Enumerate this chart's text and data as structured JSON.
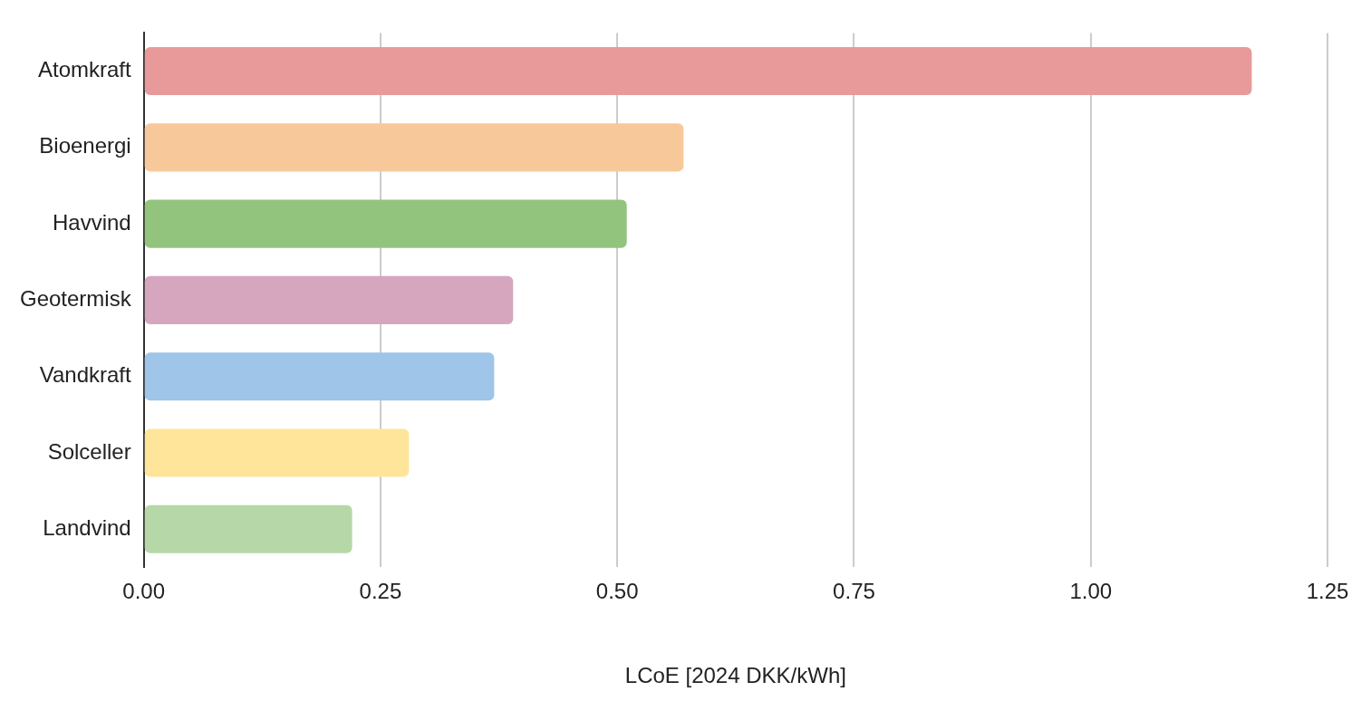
{
  "chart_data": {
    "type": "bar",
    "orientation": "horizontal",
    "xlabel": "LCoE [2024 DKK/kWh]",
    "categories": [
      "Atomkraft",
      "Bioenergi",
      "Havvind",
      "Geotermisk",
      "Vandkraft",
      "Solceller",
      "Landvind"
    ],
    "values": [
      1.17,
      0.57,
      0.51,
      0.39,
      0.37,
      0.28,
      0.22
    ],
    "colors": [
      "#e89a9a",
      "#f7c99a",
      "#93c47d",
      "#d5a6bd",
      "#9fc5e8",
      "#ffe599",
      "#b6d7a8"
    ],
    "xlim": [
      0,
      1.25
    ],
    "xticks": [
      {
        "value": 0,
        "label": "0.00"
      },
      {
        "value": 0.25,
        "label": "0.25"
      },
      {
        "value": 0.5,
        "label": "0.50"
      },
      {
        "value": 0.75,
        "label": "0.75"
      },
      {
        "value": 1,
        "label": "1.00"
      },
      {
        "value": 1.25,
        "label": "1.25"
      }
    ],
    "grid": "x",
    "legend": false
  }
}
